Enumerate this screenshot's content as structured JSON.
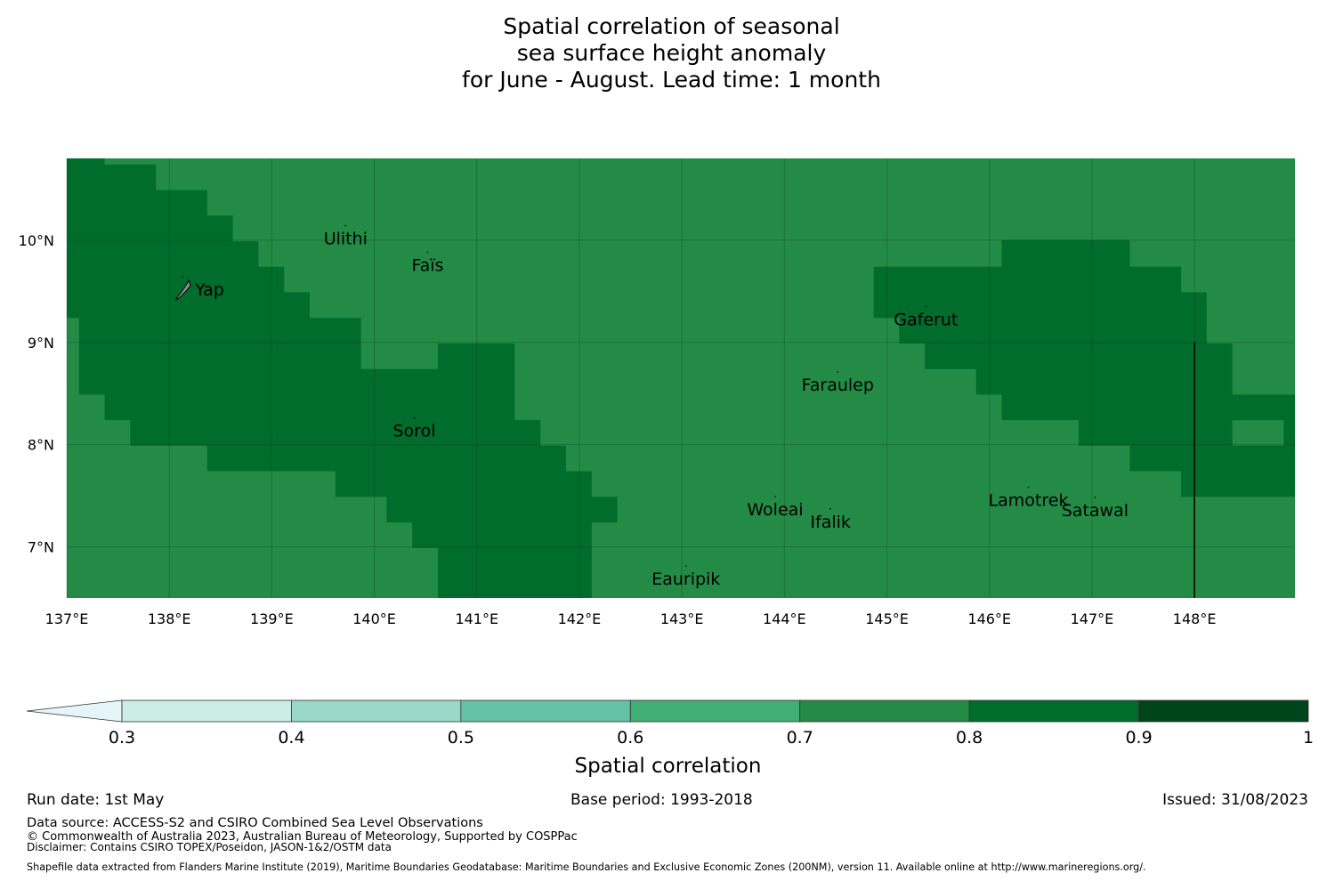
{
  "title_lines": [
    "Spatial correlation of seasonal",
    "sea surface height anomaly",
    "for June - August. Lead time: 1 month"
  ],
  "map": {
    "lon_range": [
      137,
      148.98
    ],
    "lat_range": [
      6.5,
      10.8
    ],
    "lon_ticks": [
      {
        "value": 137,
        "label": "137°E"
      },
      {
        "value": 138,
        "label": "138°E"
      },
      {
        "value": 139,
        "label": "139°E"
      },
      {
        "value": 140,
        "label": "140°E"
      },
      {
        "value": 141,
        "label": "141°E"
      },
      {
        "value": 142,
        "label": "142°E"
      },
      {
        "value": 143,
        "label": "143°E"
      },
      {
        "value": 144,
        "label": "144°E"
      },
      {
        "value": 145,
        "label": "145°E"
      },
      {
        "value": 146,
        "label": "146°E"
      },
      {
        "value": 147,
        "label": "147°E"
      },
      {
        "value": 148,
        "label": "148°E"
      }
    ],
    "lat_ticks": [
      {
        "value": 10,
        "label": "10°N"
      },
      {
        "value": 9,
        "label": "9°N"
      },
      {
        "value": 8,
        "label": "8°N"
      },
      {
        "value": 7,
        "label": "7°N"
      }
    ],
    "background_class_color": "#238b45",
    "high_class_color": "#006d2c",
    "high_regions": [
      [
        [
          137,
          10.8
        ],
        [
          137.37,
          10.8
        ],
        [
          137.37,
          10.74
        ],
        [
          137.87,
          10.74
        ],
        [
          137.87,
          10.49
        ],
        [
          138.37,
          10.49
        ],
        [
          138.37,
          10.24
        ],
        [
          138.62,
          10.24
        ],
        [
          138.62,
          9.99
        ],
        [
          138.87,
          9.99
        ],
        [
          138.87,
          9.74
        ],
        [
          139.12,
          9.74
        ],
        [
          139.12,
          9.49
        ],
        [
          139.37,
          9.49
        ],
        [
          139.37,
          9.24
        ],
        [
          139.87,
          9.24
        ],
        [
          139.87,
          8.74
        ],
        [
          140.62,
          8.74
        ],
        [
          140.62,
          8.99
        ],
        [
          141.37,
          8.99
        ],
        [
          141.37,
          8.24
        ],
        [
          141.62,
          8.24
        ],
        [
          141.62,
          7.99
        ],
        [
          141.87,
          7.99
        ],
        [
          141.87,
          7.74
        ],
        [
          142.12,
          7.74
        ],
        [
          142.12,
          7.49
        ],
        [
          142.37,
          7.49
        ],
        [
          142.37,
          7.24
        ],
        [
          142.12,
          7.24
        ],
        [
          142.12,
          6.5
        ],
        [
          140.62,
          6.5
        ],
        [
          140.62,
          6.99
        ],
        [
          140.37,
          6.99
        ],
        [
          140.37,
          7.24
        ],
        [
          140.12,
          7.24
        ],
        [
          140.12,
          7.49
        ],
        [
          139.62,
          7.49
        ],
        [
          139.62,
          7.74
        ],
        [
          138.37,
          7.74
        ],
        [
          138.37,
          7.99
        ],
        [
          137.62,
          7.99
        ],
        [
          137.62,
          8.24
        ],
        [
          137.37,
          8.24
        ],
        [
          137.37,
          8.49
        ],
        [
          137.12,
          8.49
        ],
        [
          137.12,
          9.24
        ],
        [
          137,
          9.24
        ]
      ],
      [
        [
          146.12,
          10.0
        ],
        [
          147.37,
          10.0
        ],
        [
          147.37,
          9.74
        ],
        [
          147.87,
          9.74
        ],
        [
          147.87,
          9.49
        ],
        [
          148.12,
          9.49
        ],
        [
          148.12,
          8.99
        ],
        [
          148.37,
          8.99
        ],
        [
          148.37,
          8.49
        ],
        [
          148.98,
          8.49
        ],
        [
          148.98,
          7.49
        ],
        [
          147.87,
          7.49
        ],
        [
          147.87,
          7.74
        ],
        [
          147.37,
          7.74
        ],
        [
          147.37,
          7.99
        ],
        [
          146.87,
          7.99
        ],
        [
          146.87,
          8.24
        ],
        [
          146.12,
          8.24
        ],
        [
          146.12,
          8.49
        ],
        [
          145.87,
          8.49
        ],
        [
          145.87,
          8.74
        ],
        [
          145.37,
          8.74
        ],
        [
          145.37,
          8.99
        ],
        [
          145.12,
          8.99
        ],
        [
          145.12,
          9.24
        ],
        [
          144.87,
          9.24
        ],
        [
          144.87,
          9.74
        ],
        [
          146.12,
          9.74
        ]
      ]
    ],
    "inner_patch": [
      [
        148.37,
        8.24
      ],
      [
        148.87,
        8.24
      ],
      [
        148.87,
        7.99
      ],
      [
        148.37,
        7.99
      ]
    ],
    "boundary_line": {
      "lon": 148,
      "lat_from": 6.5,
      "lat_to": 9.0
    },
    "islands": [
      {
        "name": "Ulithi",
        "label": "Ulithi",
        "lon": 139.72,
        "lat": 10.02
      },
      {
        "name": "Fais",
        "label": "Faïs",
        "lon": 140.52,
        "lat": 9.76
      },
      {
        "name": "Yap",
        "label": "Yap",
        "lon": 138.13,
        "lat": 9.52
      },
      {
        "name": "Gaferut",
        "label": "Gaferut",
        "lon": 145.38,
        "lat": 9.23
      },
      {
        "name": "Faraulep",
        "label": "Faraulep",
        "lon": 144.52,
        "lat": 8.59
      },
      {
        "name": "Sorol",
        "label": "Sorol",
        "lon": 140.39,
        "lat": 8.14
      },
      {
        "name": "Woleai",
        "label": "Woleai",
        "lon": 143.91,
        "lat": 7.37
      },
      {
        "name": "Ifalik",
        "label": "Ifalik",
        "lon": 144.45,
        "lat": 7.25
      },
      {
        "name": "Lamotrek",
        "label": "Lamotrek",
        "lon": 146.38,
        "lat": 7.46
      },
      {
        "name": "Satawal",
        "label": "Satawal",
        "lon": 147.03,
        "lat": 7.36
      },
      {
        "name": "Eauripik",
        "label": "Eauripik",
        "lon": 143.04,
        "lat": 6.69
      }
    ]
  },
  "colorbar": {
    "boundaries": [
      0.3,
      0.4,
      0.5,
      0.6,
      0.7,
      0.8,
      0.9,
      1.0
    ],
    "tick_labels": [
      "0.3",
      "0.4",
      "0.5",
      "0.6",
      "0.7",
      "0.8",
      "0.9",
      "1"
    ],
    "colors": [
      "#ccece6",
      "#99d8c9",
      "#66c2a4",
      "#41ae76",
      "#238b45",
      "#006d2c",
      "#00441b"
    ],
    "extend_color": "#e5f5f9",
    "extend": "min",
    "label": "Spatial correlation"
  },
  "footer": {
    "run_date": "Run date: 1st May",
    "base_period": "Base period: 1993-2018",
    "issued": "Issued: 31/08/2023",
    "data_source": "Data source: ACCESS-S2 and CSIRO Combined Sea Level Observations",
    "copyright": "© Commonwealth of Australia 2023, Australian Bureau of Meteorology, Supported by COSPPac",
    "disclaimer": "Disclaimer: Contains CSIRO TOPEX/Poseidon, JASON-1&2/OSTM data",
    "shapefile": "Shapefile data extracted from Flanders Marine Institute (2019), Maritime Boundaries Geodatabase: Maritime Boundaries and Exclusive Economic Zones (200NM), version 11. Available online at http://www.marineregions.org/."
  }
}
